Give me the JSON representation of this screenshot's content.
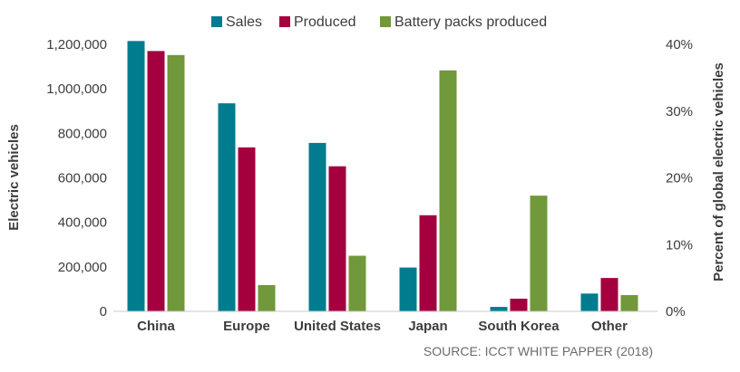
{
  "chart_data": {
    "type": "bar",
    "categories": [
      "China",
      "Europe",
      "United States",
      "Japan",
      "South Korea",
      "Other"
    ],
    "series": [
      {
        "name": "Sales",
        "color": "#007c8f",
        "values": [
          1215000,
          935000,
          757000,
          197000,
          20000,
          80000
        ]
      },
      {
        "name": "Produced",
        "color": "#a4003f",
        "values": [
          1170000,
          737000,
          652000,
          432000,
          57000,
          150000
        ]
      },
      {
        "name": "Battery packs produced",
        "color": "#71983a",
        "values": [
          1152000,
          118000,
          250000,
          1083000,
          520000,
          73000
        ]
      }
    ],
    "ylabel": "Electric vehicles",
    "y2label": "Percent of global electric vehicles",
    "ylim": [
      0,
      1200000
    ],
    "yticks": [
      0,
      200000,
      400000,
      600000,
      800000,
      1000000,
      1200000
    ],
    "ytick_labels": [
      "0",
      "200,000",
      "400,000",
      "600,000",
      "800,000",
      "1,000,000",
      "1,200,000"
    ],
    "y2lim": [
      0,
      40
    ],
    "y2ticks": [
      0,
      10,
      20,
      30,
      40
    ],
    "y2tick_labels": [
      "0%",
      "10%",
      "20%",
      "30%",
      "40%"
    ],
    "legend_position": "top",
    "grid": false,
    "source": "SOURCE:  ICCT WHITE PAPPER (2018)"
  }
}
